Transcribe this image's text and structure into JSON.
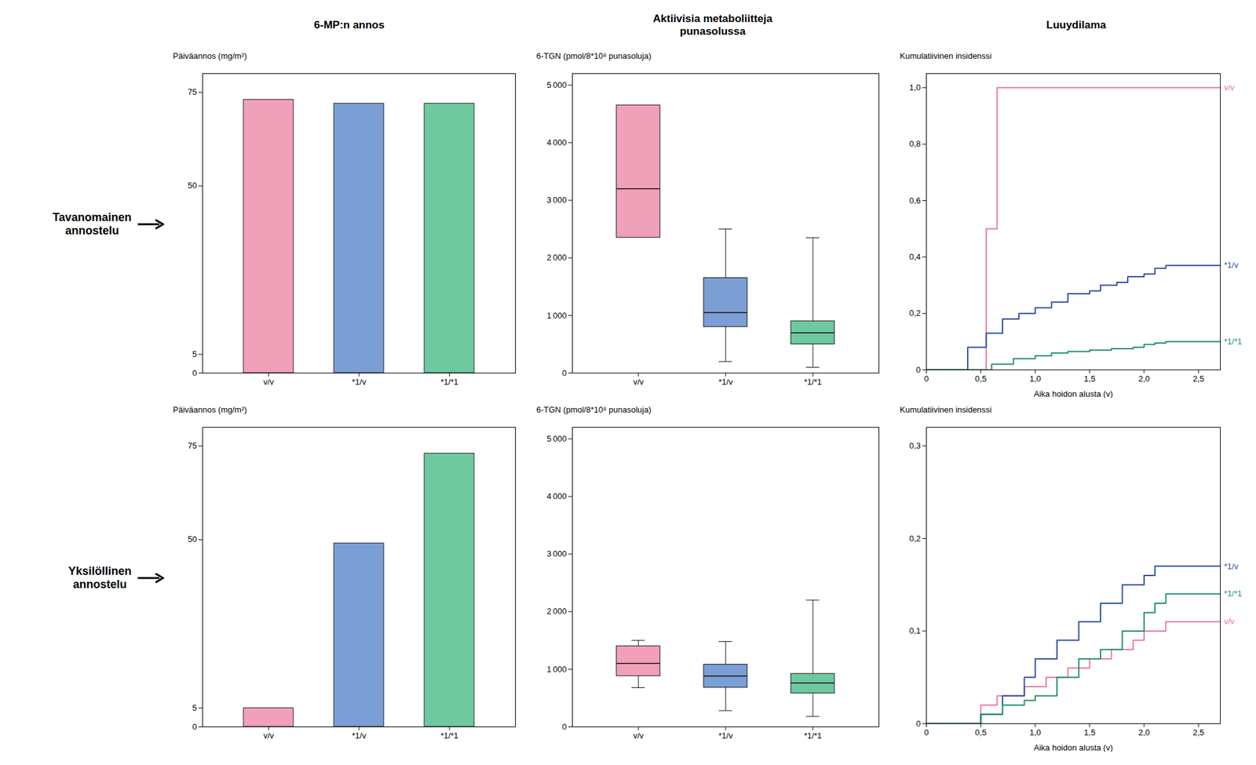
{
  "chart_data": [
    {
      "type": "bar",
      "title": "6-MP:n annos",
      "annotations": [
        "Tavanomainen\nannostelu"
      ],
      "categories": [
        "v/v",
        "*1/v",
        "*1/*1"
      ],
      "values": [
        73,
        72,
        72
      ],
      "colors": [
        "#F0A0B8",
        "#7B9ED4",
        "#6EC9A0"
      ],
      "ylabel": "Päiväannos (mg/m²)",
      "ylim": [
        0,
        80
      ],
      "yticks": [
        0,
        5,
        50,
        75
      ],
      "grid": false
    },
    {
      "type": "box",
      "title": "Aktiivisia metaboliitteja\npunasolussa",
      "categories": [
        "v/v",
        "*1/v",
        "*1/*1"
      ],
      "q1": [
        2350,
        800,
        500
      ],
      "median": [
        3200,
        1050,
        700
      ],
      "q3": [
        4650,
        1650,
        900
      ],
      "whisker_low": [
        null,
        200,
        100
      ],
      "whisker_high": [
        null,
        2500,
        2350
      ],
      "colors": [
        "#F0A0B8",
        "#7B9ED4",
        "#6EC9A0"
      ],
      "ylabel": "6-TGN (pmol/8*10⁸ punasoluja)",
      "ylim": [
        0,
        5200
      ],
      "yticks": [
        0,
        {
          "value": 1000,
          "label": "1 000"
        },
        {
          "value": 2000,
          "label": "2 000"
        },
        {
          "value": 3000,
          "label": "3 000"
        },
        {
          "value": 4000,
          "label": "4 000"
        },
        {
          "value": 5000,
          "label": "5 000"
        }
      ],
      "grid": false
    },
    {
      "type": "line",
      "title": "Luuydilama",
      "line_style": "step",
      "xlabel": "Aika hoidon alusta (v)",
      "ylabel": "Kumulatiivinen insidenssi",
      "xlim": [
        0,
        2.7
      ],
      "xticks": [
        0,
        {
          "value": 0.5,
          "label": "0,5"
        },
        {
          "value": 1,
          "label": "1,0"
        },
        {
          "value": 1.5,
          "label": "1,5"
        },
        {
          "value": 2,
          "label": "2,0"
        },
        {
          "value": 2.5,
          "label": "2,5"
        }
      ],
      "ylim": [
        0,
        1.05
      ],
      "yticks": [
        0,
        {
          "value": 0.2,
          "label": "0,2"
        },
        {
          "value": 0.4,
          "label": "0,4"
        },
        {
          "value": 0.6,
          "label": "0,6"
        },
        {
          "value": 0.8,
          "label": "0,8"
        },
        {
          "value": 1,
          "label": "1,0"
        }
      ],
      "grid": false,
      "series": [
        {
          "name": "v/v",
          "color": "#E87898",
          "x": [
            0.0,
            0.55,
            0.55,
            0.65,
            0.65,
            2.7
          ],
          "values": [
            0.0,
            0.0,
            0.5,
            0.5,
            1.0,
            1.0
          ]
        },
        {
          "name": "*1/v",
          "color": "#2A4EA0",
          "x": [
            0.0,
            0.38,
            0.38,
            0.55,
            0.55,
            0.7,
            0.7,
            0.85,
            0.85,
            1.0,
            1.0,
            1.15,
            1.15,
            1.3,
            1.3,
            1.5,
            1.5,
            1.6,
            1.6,
            1.75,
            1.75,
            1.85,
            1.85,
            2.0,
            2.0,
            2.1,
            2.1,
            2.2,
            2.2,
            2.3,
            2.3,
            2.7
          ],
          "values": [
            0.0,
            0.0,
            0.08,
            0.08,
            0.13,
            0.13,
            0.18,
            0.18,
            0.2,
            0.2,
            0.22,
            0.22,
            0.24,
            0.24,
            0.27,
            0.27,
            0.28,
            0.28,
            0.3,
            0.3,
            0.31,
            0.31,
            0.33,
            0.33,
            0.34,
            0.34,
            0.36,
            0.36,
            0.37,
            0.37,
            0.37,
            0.37
          ]
        },
        {
          "name": "*1/*1",
          "color": "#1A9060",
          "x": [
            0.0,
            0.6,
            0.6,
            0.8,
            0.8,
            1.0,
            1.0,
            1.15,
            1.15,
            1.3,
            1.3,
            1.5,
            1.5,
            1.7,
            1.7,
            1.9,
            1.9,
            2.0,
            2.0,
            2.1,
            2.1,
            2.2,
            2.2,
            2.3,
            2.3,
            2.7
          ],
          "values": [
            0.0,
            0.0,
            0.02,
            0.02,
            0.04,
            0.04,
            0.05,
            0.05,
            0.06,
            0.06,
            0.065,
            0.065,
            0.07,
            0.07,
            0.075,
            0.075,
            0.08,
            0.08,
            0.09,
            0.09,
            0.095,
            0.095,
            0.1,
            0.1,
            0.1,
            0.1
          ]
        }
      ]
    },
    {
      "type": "bar",
      "annotations": [
        "Yksilöllinen\nannostelu"
      ],
      "categories": [
        "v/v",
        "*1/v",
        "*1/*1"
      ],
      "values": [
        5,
        49,
        73
      ],
      "colors": [
        "#F0A0B8",
        "#7B9ED4",
        "#6EC9A0"
      ],
      "ylabel": "Päiväannos (mg/m²)",
      "ylim": [
        0,
        80
      ],
      "yticks": [
        0,
        5,
        50,
        75
      ],
      "grid": false
    },
    {
      "type": "box",
      "categories": [
        "v/v",
        "*1/v",
        "*1/*1"
      ],
      "q1": [
        880,
        680,
        580
      ],
      "median": [
        1100,
        880,
        760
      ],
      "q3": [
        1400,
        1080,
        920
      ],
      "whisker_low": [
        680,
        280,
        180
      ],
      "whisker_high": [
        1500,
        1480,
        2200
      ],
      "colors": [
        "#F0A0B8",
        "#7B9ED4",
        "#6EC9A0"
      ],
      "ylabel": "6-TGN (pmol/8*10⁸ punasoluja)",
      "ylim": [
        0,
        5200
      ],
      "yticks": [
        0,
        {
          "value": 1000,
          "label": "1 000"
        },
        {
          "value": 2000,
          "label": "2 000"
        },
        {
          "value": 3000,
          "label": "3 000"
        },
        {
          "value": 4000,
          "label": "4 000"
        },
        {
          "value": 5000,
          "label": "5 000"
        }
      ],
      "grid": false
    },
    {
      "type": "line",
      "line_style": "step",
      "xlabel": "Aika hoidon alusta (v)",
      "ylabel": "Kumulatiivinen insidenssi",
      "xlim": [
        0,
        2.7
      ],
      "xticks": [
        0,
        {
          "value": 0.5,
          "label": "0,5"
        },
        {
          "value": 1,
          "label": "1,0"
        },
        {
          "value": 1.5,
          "label": "1,5"
        },
        {
          "value": 2,
          "label": "2,0"
        },
        {
          "value": 2.5,
          "label": "2,5"
        }
      ],
      "ylim": [
        0,
        0.32
      ],
      "yticks": [
        0,
        {
          "value": 0.1,
          "label": "0,1"
        },
        {
          "value": 0.2,
          "label": "0,2"
        },
        {
          "value": 0.3,
          "label": "0,3"
        }
      ],
      "grid": false,
      "series": [
        {
          "name": "v/v",
          "color": "#E87898",
          "x": [
            0.0,
            0.5,
            0.5,
            0.65,
            0.65,
            0.9,
            0.9,
            1.1,
            1.1,
            1.3,
            1.3,
            1.5,
            1.5,
            1.7,
            1.7,
            1.9,
            1.9,
            2.0,
            2.0,
            2.2,
            2.2,
            2.3,
            2.3,
            2.7
          ],
          "values": [
            0.0,
            0.0,
            0.02,
            0.02,
            0.03,
            0.03,
            0.04,
            0.04,
            0.05,
            0.05,
            0.06,
            0.06,
            0.07,
            0.07,
            0.08,
            0.08,
            0.09,
            0.09,
            0.1,
            0.1,
            0.11,
            0.11,
            0.11,
            0.11
          ]
        },
        {
          "name": "*1/v",
          "color": "#2A4EA0",
          "x": [
            0.0,
            0.5,
            0.5,
            0.7,
            0.7,
            0.9,
            0.9,
            1.0,
            1.0,
            1.2,
            1.2,
            1.4,
            1.4,
            1.6,
            1.6,
            1.8,
            1.8,
            2.0,
            2.0,
            2.1,
            2.1,
            2.3,
            2.3,
            2.7
          ],
          "values": [
            0.0,
            0.0,
            0.01,
            0.01,
            0.03,
            0.03,
            0.05,
            0.05,
            0.07,
            0.07,
            0.09,
            0.09,
            0.11,
            0.11,
            0.13,
            0.13,
            0.15,
            0.15,
            0.16,
            0.16,
            0.17,
            0.17,
            0.17,
            0.17
          ]
        },
        {
          "name": "*1/*1",
          "color": "#1A9060",
          "x": [
            0.0,
            0.5,
            0.5,
            0.7,
            0.7,
            0.9,
            0.9,
            1.0,
            1.0,
            1.2,
            1.2,
            1.4,
            1.4,
            1.6,
            1.6,
            1.8,
            1.8,
            2.0,
            2.0,
            2.1,
            2.1,
            2.2,
            2.2,
            2.3,
            2.3,
            2.7
          ],
          "values": [
            0.0,
            0.0,
            0.01,
            0.01,
            0.02,
            0.02,
            0.025,
            0.025,
            0.03,
            0.03,
            0.05,
            0.05,
            0.07,
            0.07,
            0.08,
            0.08,
            0.1,
            0.1,
            0.12,
            0.12,
            0.13,
            0.13,
            0.14,
            0.14,
            0.14,
            0.14
          ]
        }
      ]
    }
  ]
}
